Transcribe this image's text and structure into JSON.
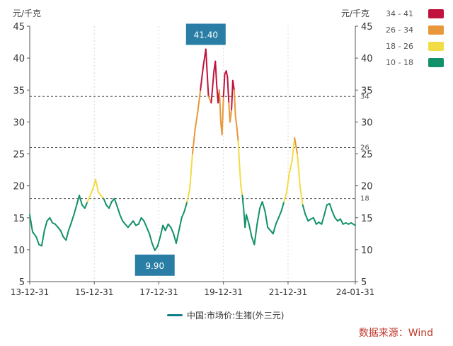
{
  "chart_data": {
    "type": "line",
    "y_unit_left": "元/千克",
    "y_unit_right": "元/千克",
    "ylim": [
      5,
      45
    ],
    "y_ticks": [
      5,
      10,
      15,
      20,
      25,
      30,
      35,
      40,
      45
    ],
    "xlim": [
      "2013-12-31",
      "2024-01-31"
    ],
    "x_tick_labels": [
      "13-12-31",
      "15-12-31",
      "17-12-31",
      "19-12-31",
      "21-12-31",
      "24-01-31"
    ],
    "x_tick_dates": [
      "2013-12-31",
      "2015-12-31",
      "2017-12-31",
      "2019-12-31",
      "2021-12-31",
      "2024-01-31"
    ],
    "series": [
      {
        "name": "中国:市场价:生猪(外三元)",
        "dates": [
          "2013-12-31",
          "2014-02-01",
          "2014-03-15",
          "2014-04-15",
          "2014-05-15",
          "2014-06-15",
          "2014-07-15",
          "2014-08-15",
          "2014-09-15",
          "2014-10-15",
          "2014-11-15",
          "2014-12-15",
          "2015-01-15",
          "2015-02-15",
          "2015-03-15",
          "2015-04-15",
          "2015-05-15",
          "2015-06-15",
          "2015-07-15",
          "2015-08-15",
          "2015-09-15",
          "2015-10-15",
          "2015-11-15",
          "2015-12-15",
          "2016-01-15",
          "2016-02-15",
          "2016-03-15",
          "2016-04-15",
          "2016-05-15",
          "2016-06-15",
          "2016-07-15",
          "2016-08-15",
          "2016-09-15",
          "2016-10-15",
          "2016-11-15",
          "2016-12-15",
          "2017-01-15",
          "2017-02-15",
          "2017-03-15",
          "2017-04-15",
          "2017-05-15",
          "2017-06-15",
          "2017-07-15",
          "2017-08-15",
          "2017-09-15",
          "2017-10-15",
          "2017-11-15",
          "2017-12-15",
          "2018-01-15",
          "2018-02-15",
          "2018-03-15",
          "2018-04-15",
          "2018-05-15",
          "2018-06-15",
          "2018-07-15",
          "2018-08-15",
          "2018-09-15",
          "2018-10-15",
          "2018-11-15",
          "2018-12-15",
          "2019-01-15",
          "2019-02-15",
          "2019-03-15",
          "2019-04-15",
          "2019-05-15",
          "2019-06-15",
          "2019-07-15",
          "2019-08-15",
          "2019-09-15",
          "2019-10-01",
          "2019-10-15",
          "2019-11-01",
          "2019-11-15",
          "2019-12-01",
          "2019-12-15",
          "2020-01-01",
          "2020-01-15",
          "2020-02-01",
          "2020-02-15",
          "2020-03-01",
          "2020-03-15",
          "2020-04-01",
          "2020-04-15",
          "2020-05-01",
          "2020-05-15",
          "2020-06-01",
          "2020-06-15",
          "2020-07-01",
          "2020-07-15",
          "2020-08-01",
          "2020-08-15",
          "2020-09-01",
          "2020-09-15",
          "2020-10-15",
          "2020-11-15",
          "2020-12-15",
          "2021-01-15",
          "2021-02-15",
          "2021-03-15",
          "2021-04-15",
          "2021-05-15",
          "2021-06-15",
          "2021-07-15",
          "2021-08-15",
          "2021-09-15",
          "2021-10-15",
          "2021-11-15",
          "2021-12-15",
          "2022-01-15",
          "2022-02-15",
          "2022-03-15",
          "2022-04-15",
          "2022-05-15",
          "2022-06-15",
          "2022-07-15",
          "2022-08-15",
          "2022-09-15",
          "2022-10-15",
          "2022-11-15",
          "2022-12-15",
          "2023-01-15",
          "2023-02-15",
          "2023-03-15",
          "2023-04-15",
          "2023-05-15",
          "2023-06-15",
          "2023-07-15",
          "2023-08-15",
          "2023-09-15",
          "2023-10-15",
          "2023-11-15",
          "2023-12-15",
          "2024-01-31"
        ],
        "values": [
          15.5,
          12.8,
          12.0,
          10.8,
          10.6,
          13.0,
          14.5,
          15.0,
          14.2,
          14.0,
          13.5,
          13.0,
          12.0,
          11.5,
          13.0,
          14.2,
          15.5,
          17.0,
          18.5,
          17.0,
          16.5,
          17.5,
          18.5,
          19.5,
          21.0,
          19.0,
          18.5,
          18.0,
          17.0,
          16.5,
          17.5,
          18.0,
          16.8,
          15.5,
          14.5,
          14.0,
          13.5,
          14.0,
          14.5,
          13.8,
          14.0,
          15.0,
          14.5,
          13.5,
          12.5,
          11.0,
          9.9,
          10.5,
          12.0,
          13.8,
          13.0,
          14.0,
          13.5,
          12.5,
          11.0,
          13.0,
          15.0,
          16.0,
          17.5,
          19.5,
          25.0,
          29.0,
          31.5,
          35.0,
          38.5,
          41.4,
          34.0,
          33.0,
          38.0,
          39.5,
          36.0,
          33.0,
          35.0,
          30.0,
          28.0,
          34.0,
          37.5,
          38.0,
          37.0,
          33.0,
          30.0,
          32.0,
          36.5,
          35.0,
          31.0,
          29.0,
          27.0,
          23.0,
          20.0,
          18.5,
          16.5,
          13.5,
          15.5,
          14.0,
          12.0,
          10.8,
          14.0,
          16.5,
          17.5,
          16.0,
          13.5,
          13.0,
          12.5,
          14.0,
          15.0,
          16.0,
          17.5,
          19.0,
          22.0,
          24.0,
          27.5,
          25.0,
          20.0,
          17.0,
          15.5,
          14.5,
          14.8,
          15.0,
          14.0,
          14.3,
          14.0,
          15.5,
          17.0,
          17.2,
          16.0,
          15.0,
          14.5,
          14.8,
          14.0,
          14.2,
          14.0,
          14.2,
          13.8
        ]
      }
    ],
    "reference_lines": [
      18,
      26,
      34
    ],
    "reference_labels": [
      "18",
      "26",
      "34"
    ],
    "visual_map": [
      {
        "label": "34 - 41",
        "min": 34,
        "max": 41,
        "color": "#c0123c"
      },
      {
        "label": "26 - 34",
        "min": 26,
        "max": 34,
        "color": "#e8983a"
      },
      {
        "label": "18 - 26",
        "min": 18,
        "max": 26,
        "color": "#f2dc45"
      },
      {
        "label": "10 - 18",
        "min": 10,
        "max": 18,
        "color": "#13916b"
      }
    ],
    "annotations": [
      {
        "text": "41.40",
        "date": "2019-06-15",
        "value": 41.4,
        "position": "above"
      },
      {
        "text": "9.90",
        "date": "2017-11-15",
        "value": 9.9,
        "position": "below"
      }
    ],
    "legend_label": "中国:市场价:生猪(外三元)",
    "legend_position": "bottom-center",
    "grid": "vertical dashed"
  },
  "source_text": "数据来源：Wind",
  "colors": {
    "marker_box": "#2a7ea6",
    "legend_line": "#127f87",
    "source_text": "#c0392b"
  }
}
